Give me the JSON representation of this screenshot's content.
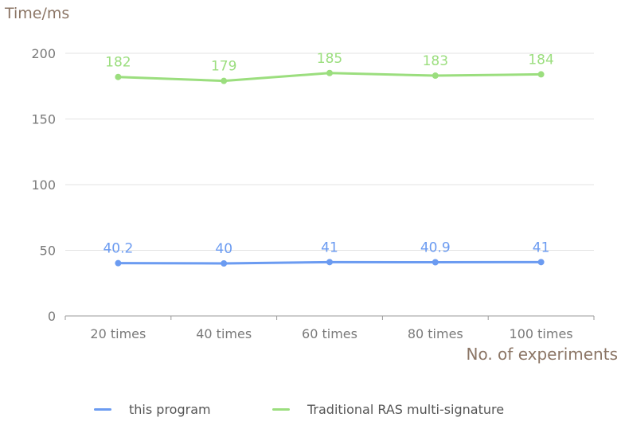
{
  "chart_data": {
    "type": "line",
    "ylabel": "Time/ms",
    "xlabel": "No. of experiments",
    "categories": [
      "20 times",
      "40 times",
      "60 times",
      "80 times",
      "100 times"
    ],
    "ylim": [
      0,
      200
    ],
    "yticks": [
      "0",
      "50",
      "100",
      "150",
      "200"
    ],
    "grid": true,
    "legend_position": "bottom",
    "series": [
      {
        "name": "this program",
        "values": [
          40.2,
          40,
          41,
          40.9,
          41
        ],
        "labels": [
          "40.2",
          "40",
          "41",
          "40.9",
          "41"
        ],
        "color": "#6b9bf1"
      },
      {
        "name": "Traditional RAS multi-signature",
        "values": [
          182,
          179,
          185,
          183,
          184
        ],
        "labels": [
          "182",
          "179",
          "185",
          "183",
          "184"
        ],
        "color": "#9bde7e"
      }
    ]
  }
}
